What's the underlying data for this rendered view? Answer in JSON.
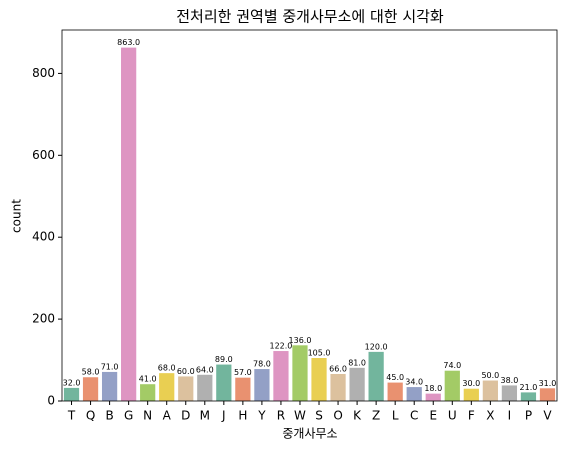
{
  "chart_data": {
    "type": "bar",
    "title": "전처리한 권역별 중개사무소에 대한 시각화",
    "x_label": "중개사무소",
    "y_label": "count",
    "categories": [
      "T",
      "Q",
      "B",
      "G",
      "N",
      "A",
      "D",
      "M",
      "J",
      "H",
      "Y",
      "R",
      "W",
      "S",
      "O",
      "K",
      "Z",
      "L",
      "C",
      "E",
      "U",
      "F",
      "X",
      "I",
      "P",
      "V"
    ],
    "values": [
      32,
      58,
      71,
      863,
      41,
      68,
      60,
      64,
      89,
      57,
      78,
      122,
      136,
      105,
      66,
      81,
      120,
      45,
      34,
      18,
      74,
      30,
      50,
      38,
      21,
      31
    ],
    "value_labels": [
      "32.0",
      "58.0",
      "71.0",
      "863.0",
      "41.0",
      "68.0",
      "60.0",
      "64.0",
      "89.0",
      "57.0",
      "78.0",
      "122.0",
      "136.0",
      "105.0",
      "66.0",
      "81.0",
      "120.0",
      "45.0",
      "34.0",
      "18.0",
      "74.0",
      "30.0",
      "50.0",
      "38.0",
      "21.0",
      "31.0"
    ],
    "colors": [
      "#72b59d",
      "#e99170",
      "#93a0c6",
      "#de95c2",
      "#a3cb66",
      "#e9cf52",
      "#dcc19e",
      "#b0b0b0",
      "#72b59d",
      "#e99170",
      "#93a0c6",
      "#de95c2",
      "#a3cb66",
      "#e9cf52",
      "#dcc19e",
      "#b0b0b0",
      "#72b59d",
      "#e99170",
      "#93a0c6",
      "#de95c2",
      "#a3cb66",
      "#e9cf52",
      "#dcc19e",
      "#b0b0b0",
      "#72b59d",
      "#e99170"
    ],
    "ylim": [
      0,
      906
    ],
    "yticks": [
      0,
      200,
      400,
      600,
      800
    ]
  }
}
